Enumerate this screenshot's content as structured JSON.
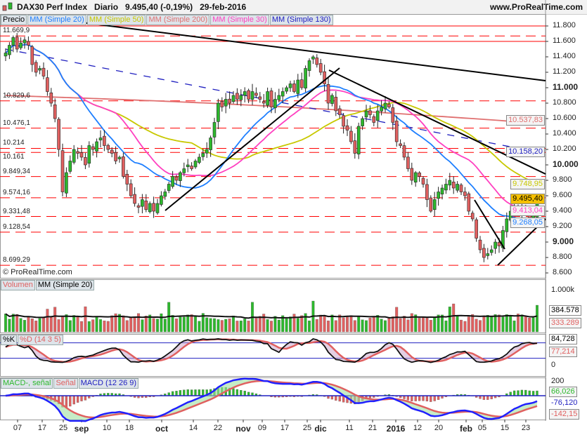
{
  "header": {
    "title": "DAX30 Perf Index   Diario   9.495,40 (-0,19%)   29-feb-2016",
    "site": "www.ProRealTime.com",
    "logo_icon": "candlestick-icon"
  },
  "price_legend": [
    "Precio",
    "MM (Simple 20)",
    "MM (Simple 50)",
    "MM (Simple 200)",
    "MM (Simple 30)",
    "MM (Simple 130)"
  ],
  "copyright": "© ProRealTime.com",
  "volume_legend": [
    "Volumen",
    "MM (Simple 20)"
  ],
  "stoch_legend": [
    "%K",
    "%D (14 3 5)"
  ],
  "macd_legend": [
    "MACD-, señal",
    "Señal",
    "MACD (12 26 9)"
  ],
  "colors": {
    "up": "#2db82d",
    "down": "#e06060",
    "mm20": "#1e7fff",
    "mm50": "#c8c800",
    "mm200": "#e07070",
    "mm30": "#ff40c0",
    "mm130": "#2020c0",
    "level": "#ff0000",
    "last_bg": "#f5c000"
  },
  "chart_data": {
    "type": "candlestick",
    "ylim": [
      8600,
      11900
    ],
    "y_ticks": [
      "11.800",
      "11.600",
      "11.400",
      "11.200",
      "11.000",
      "10.800",
      "10.600",
      "10.400",
      "10.200",
      "10.000",
      "9.800",
      "9.600",
      "9.400",
      "9.200",
      "9.000",
      "8.800",
      "8.600"
    ],
    "x_ticks": [
      {
        "l": "07"
      },
      {
        "l": "17"
      },
      {
        "l": "25"
      },
      {
        "l": "sep",
        "b": true
      },
      {
        "l": "10"
      },
      {
        "l": "18"
      },
      {
        "l": "oct",
        "b": true
      },
      {
        "l": "14"
      },
      {
        "l": "22"
      },
      {
        "l": "nov",
        "b": true
      },
      {
        "l": "09"
      },
      {
        "l": "17"
      },
      {
        "l": "25"
      },
      {
        "l": "dic",
        "b": true
      },
      {
        "l": "11"
      },
      {
        "l": "21"
      },
      {
        "l": "2016",
        "b": true
      },
      {
        "l": "12"
      },
      {
        "l": "20"
      },
      {
        "l": "feb",
        "b": true
      },
      {
        "l": "05"
      },
      {
        "l": "15"
      },
      {
        "l": "23"
      }
    ],
    "closes": [
      11450,
      11550,
      11650,
      11500,
      11580,
      11620,
      11550,
      11300,
      11200,
      11250,
      11150,
      10950,
      10800,
      10600,
      10200,
      9650,
      9900,
      10050,
      10200,
      10150,
      10100,
      10000,
      10250,
      10200,
      10300,
      10350,
      10250,
      10200,
      10150,
      10050,
      10100,
      9850,
      9750,
      9600,
      9500,
      9450,
      9550,
      9420,
      9500,
      9400,
      9500,
      9600,
      9650,
      9750,
      9850,
      9800,
      9900,
      9950,
      10000,
      9950,
      10050,
      10100,
      10150,
      10200,
      10350,
      10550,
      10800,
      10750,
      10850,
      10800,
      10900,
      10850,
      10900,
      10950,
      10850,
      10950,
      10900,
      10850,
      10800,
      10950,
      10750,
      10850,
      10900,
      10950,
      11000,
      11050,
      10950,
      11100,
      11000,
      11250,
      11350,
      11400,
      11300,
      11200,
      11050,
      10800,
      10900,
      10700,
      10650,
      10500,
      10450,
      10300,
      10150,
      10500,
      10600,
      10700,
      10650,
      10550,
      10700,
      10750,
      10800,
      10750,
      10550,
      10300,
      10250,
      10100,
      9950,
      9800,
      9900,
      9850,
      9750,
      9550,
      9400,
      9550,
      9650,
      9700,
      9750,
      9800,
      9700,
      9750,
      9650,
      9600,
      9400,
      9300,
      9050,
      8900,
      8800,
      8850,
      8900,
      9000,
      8950,
      9150,
      9300,
      9400,
      9450,
      9350,
      9450,
      9400,
      9300,
      9350,
      9495
    ],
    "levels": [
      {
        "v": 11669.9,
        "l": "11.669,9"
      },
      {
        "v": 10829.6,
        "l": "10.829,6"
      },
      {
        "v": 10476.1,
        "l": "10.476,1"
      },
      {
        "v": 10214,
        "l": "10.214"
      },
      {
        "v": 10161,
        "l": "10.161"
      },
      {
        "v": 9849.34,
        "l": "9.849,34"
      },
      {
        "v": 9574.16,
        "l": "9.574,16"
      },
      {
        "v": 9331.48,
        "l": "9.331,48"
      },
      {
        "v": 9128.54,
        "l": "9.128,54"
      },
      {
        "v": 8699.29,
        "l": "8.699,29"
      }
    ],
    "last_values": {
      "mm200": "10.537,83",
      "mm130": "10.158,20",
      "mm50": "9.748,95",
      "price": "9.495,40",
      "mm30": "9.413,04",
      "mm20": "9.268,05"
    },
    "volume": {
      "tick": "1.000k",
      "mm20": "384.578",
      "last": "333.289"
    },
    "stoch": {
      "k": "84,728",
      "d": "77,214",
      "zero": "0"
    },
    "macd": {
      "tick": "200",
      "hist": "66,026",
      "macd": "-76,120",
      "signal": "-142,15"
    }
  }
}
